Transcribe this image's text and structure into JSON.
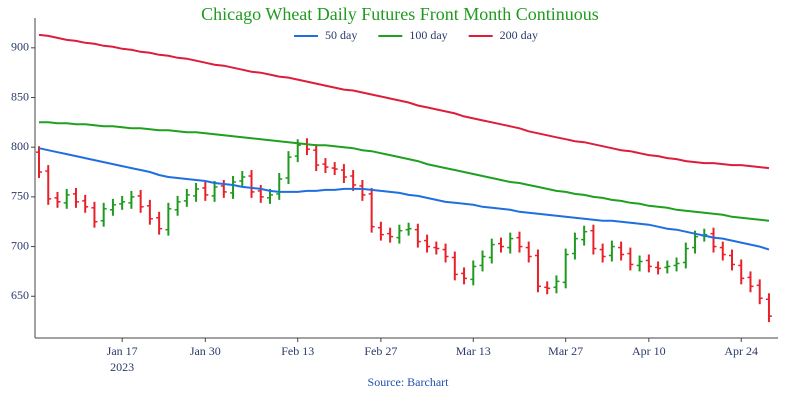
{
  "chart_data": {
    "type": "ohlc",
    "title": "Chicago Wheat Daily Futures Front Month Continuous",
    "source": "Source: Barchart",
    "x_sublabel": "2023",
    "categories": [
      null,
      null,
      null,
      null,
      null,
      null,
      null,
      null,
      null,
      "Jan 17",
      null,
      null,
      null,
      null,
      null,
      null,
      null,
      null,
      "Jan 30",
      null,
      null,
      null,
      null,
      null,
      null,
      null,
      null,
      null,
      "Feb 13",
      null,
      null,
      null,
      null,
      null,
      null,
      null,
      null,
      "Feb 27",
      null,
      null,
      null,
      null,
      null,
      null,
      null,
      null,
      null,
      "Mar 13",
      null,
      null,
      null,
      null,
      null,
      null,
      null,
      null,
      null,
      "Mar 27",
      null,
      null,
      null,
      null,
      null,
      null,
      null,
      null,
      "Apr 10",
      null,
      null,
      null,
      null,
      null,
      null,
      null,
      null,
      null,
      "Apr 24",
      null,
      null,
      null
    ],
    "open": [
      795,
      776,
      749,
      744,
      753,
      746,
      739,
      726,
      737,
      743,
      744,
      751,
      741,
      729,
      717,
      737,
      746,
      751,
      759,
      751,
      761,
      754,
      766,
      771,
      756,
      749,
      753,
      769,
      791,
      803,
      797,
      783,
      779,
      777,
      771,
      761,
      753,
      719,
      713,
      709,
      717,
      717,
      706,
      699,
      697,
      689,
      673,
      667,
      681,
      689,
      703,
      699,
      709,
      699,
      691,
      659,
      659,
      664,
      693,
      707,
      716,
      697,
      691,
      699,
      693,
      681,
      686,
      679,
      679,
      681,
      684,
      699,
      711,
      713,
      699,
      691,
      681,
      669,
      661,
      647
    ],
    "high": [
      801,
      782,
      755,
      758,
      759,
      752,
      745,
      744,
      748,
      751,
      756,
      757,
      747,
      735,
      744,
      751,
      758,
      764,
      765,
      766,
      767,
      771,
      776,
      777,
      762,
      758,
      774,
      796,
      808,
      809,
      803,
      789,
      785,
      783,
      777,
      767,
      759,
      725,
      719,
      722,
      724,
      723,
      712,
      705,
      703,
      695,
      679,
      686,
      696,
      708,
      709,
      714,
      715,
      705,
      697,
      665,
      671,
      698,
      714,
      721,
      722,
      703,
      706,
      705,
      699,
      691,
      692,
      685,
      686,
      689,
      704,
      716,
      718,
      719,
      705,
      697,
      687,
      675,
      667,
      653
    ],
    "low": [
      769,
      742,
      739,
      738,
      739,
      734,
      719,
      720,
      731,
      737,
      738,
      734,
      722,
      712,
      711,
      731,
      740,
      745,
      746,
      745,
      749,
      748,
      760,
      749,
      744,
      743,
      747,
      763,
      785,
      792,
      776,
      774,
      772,
      764,
      756,
      746,
      714,
      706,
      704,
      703,
      711,
      699,
      694,
      692,
      684,
      666,
      662,
      661,
      675,
      683,
      694,
      693,
      694,
      684,
      654,
      652,
      653,
      658,
      687,
      701,
      692,
      684,
      685,
      686,
      676,
      675,
      674,
      672,
      673,
      675,
      678,
      693,
      705,
      694,
      686,
      676,
      662,
      654,
      642,
      624
    ],
    "close": [
      775,
      748,
      745,
      752,
      745,
      740,
      725,
      738,
      742,
      745,
      750,
      740,
      728,
      718,
      738,
      745,
      752,
      758,
      752,
      760,
      755,
      765,
      770,
      755,
      750,
      752,
      768,
      790,
      802,
      798,
      782,
      780,
      778,
      770,
      762,
      752,
      720,
      712,
      710,
      716,
      718,
      705,
      700,
      698,
      690,
      672,
      668,
      680,
      690,
      702,
      700,
      708,
      700,
      690,
      660,
      658,
      665,
      692,
      708,
      715,
      698,
      690,
      700,
      692,
      682,
      685,
      680,
      678,
      680,
      683,
      698,
      710,
      712,
      700,
      692,
      682,
      668,
      660,
      648,
      630
    ],
    "up_color": "#1f9a1f",
    "down_color": "#e8202a",
    "series": [
      {
        "name": "50 day",
        "color": "#1f6fe0",
        "values": [
          799,
          797,
          795,
          793,
          791,
          789,
          787,
          785,
          783,
          781,
          779,
          777,
          775,
          772,
          770,
          769,
          768,
          767,
          766,
          764,
          763,
          762,
          760,
          759,
          758,
          756,
          755,
          755,
          755,
          756,
          756,
          757,
          757,
          758,
          758,
          758,
          757,
          756,
          755,
          754,
          752,
          751,
          749,
          747,
          745,
          744,
          743,
          742,
          740,
          739,
          738,
          737,
          735,
          734,
          733,
          732,
          731,
          730,
          729,
          728,
          727,
          726,
          726,
          725,
          724,
          723,
          722,
          720,
          718,
          717,
          715,
          713,
          711,
          709,
          708,
          706,
          704,
          702,
          700,
          697
        ]
      },
      {
        "name": "100 day",
        "color": "#1fa01f",
        "values": [
          825,
          825,
          824,
          824,
          823,
          823,
          822,
          821,
          821,
          820,
          819,
          819,
          818,
          817,
          817,
          816,
          815,
          815,
          814,
          813,
          812,
          811,
          810,
          809,
          808,
          807,
          806,
          805,
          804,
          803,
          802,
          802,
          801,
          800,
          799,
          797,
          796,
          794,
          792,
          790,
          788,
          786,
          783,
          781,
          779,
          777,
          775,
          773,
          771,
          769,
          767,
          765,
          764,
          762,
          760,
          758,
          756,
          755,
          753,
          752,
          750,
          749,
          747,
          746,
          744,
          743,
          741,
          740,
          739,
          737,
          736,
          735,
          734,
          733,
          732,
          730,
          729,
          728,
          727,
          726
        ]
      },
      {
        "name": "200 day",
        "color": "#dc1e3c",
        "values": [
          913,
          912,
          910,
          908,
          907,
          905,
          904,
          902,
          901,
          899,
          898,
          896,
          895,
          893,
          892,
          890,
          889,
          887,
          885,
          883,
          882,
          880,
          878,
          876,
          875,
          873,
          871,
          870,
          868,
          866,
          864,
          862,
          860,
          858,
          857,
          855,
          853,
          851,
          849,
          847,
          845,
          842,
          840,
          838,
          836,
          834,
          831,
          829,
          827,
          825,
          823,
          821,
          819,
          816,
          814,
          812,
          810,
          808,
          806,
          805,
          803,
          801,
          799,
          797,
          796,
          794,
          792,
          791,
          789,
          788,
          786,
          785,
          784,
          784,
          783,
          782,
          782,
          781,
          780,
          779
        ]
      }
    ],
    "ylim": [
      608,
      930
    ],
    "yticks": [
      650,
      700,
      750,
      800,
      850,
      900
    ],
    "legend": "top"
  }
}
